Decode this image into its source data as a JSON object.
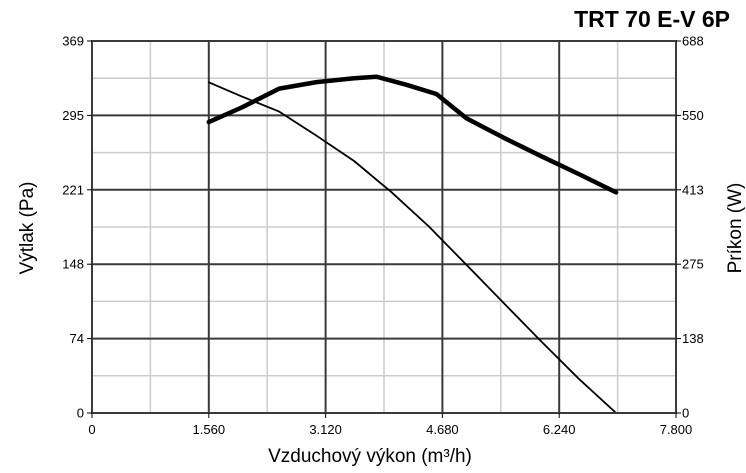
{
  "chart_data": {
    "type": "line",
    "title": "TRT 70 E-V 6P",
    "xlabel": "Vzduchový výkon (m³/h)",
    "ylabel_left": "Výtlak (Pa)",
    "ylabel_right": "Príkon (W)",
    "x_ticks": [
      "0",
      "1.560",
      "3.120",
      "4.680",
      "6.240",
      "7.800"
    ],
    "y_left_ticks": [
      "0",
      "74",
      "148",
      "221",
      "295",
      "369"
    ],
    "y_right_ticks": [
      "0",
      "138",
      "275",
      "413",
      "550",
      "688"
    ],
    "xlim": [
      0,
      7800
    ],
    "ylim_left": [
      0,
      369
    ],
    "ylim_right": [
      0,
      688
    ],
    "grid": true,
    "series": [
      {
        "axis": "left",
        "stroke": "thin",
        "x": [
          1560,
          2000,
          2500,
          3000,
          3500,
          4000,
          4500,
          5000,
          5500,
          6000,
          6500,
          7000
        ],
        "y": [
          328,
          314,
          299,
          275,
          250,
          219,
          185,
          147,
          109,
          71,
          34,
          0
        ]
      },
      {
        "axis": "right",
        "stroke": "thick",
        "x": [
          1560,
          2000,
          2500,
          3000,
          3500,
          3800,
          4200,
          4600,
          5000,
          5500,
          6000,
          6500,
          7000
        ],
        "y": [
          538,
          565,
          600,
          612,
          619,
          622,
          607,
          590,
          545,
          509,
          475,
          442,
          408
        ]
      }
    ],
    "colors": {
      "lines": "#000000",
      "major_grid": "#3a3a3a",
      "minor_grid": "#cccccc"
    }
  }
}
